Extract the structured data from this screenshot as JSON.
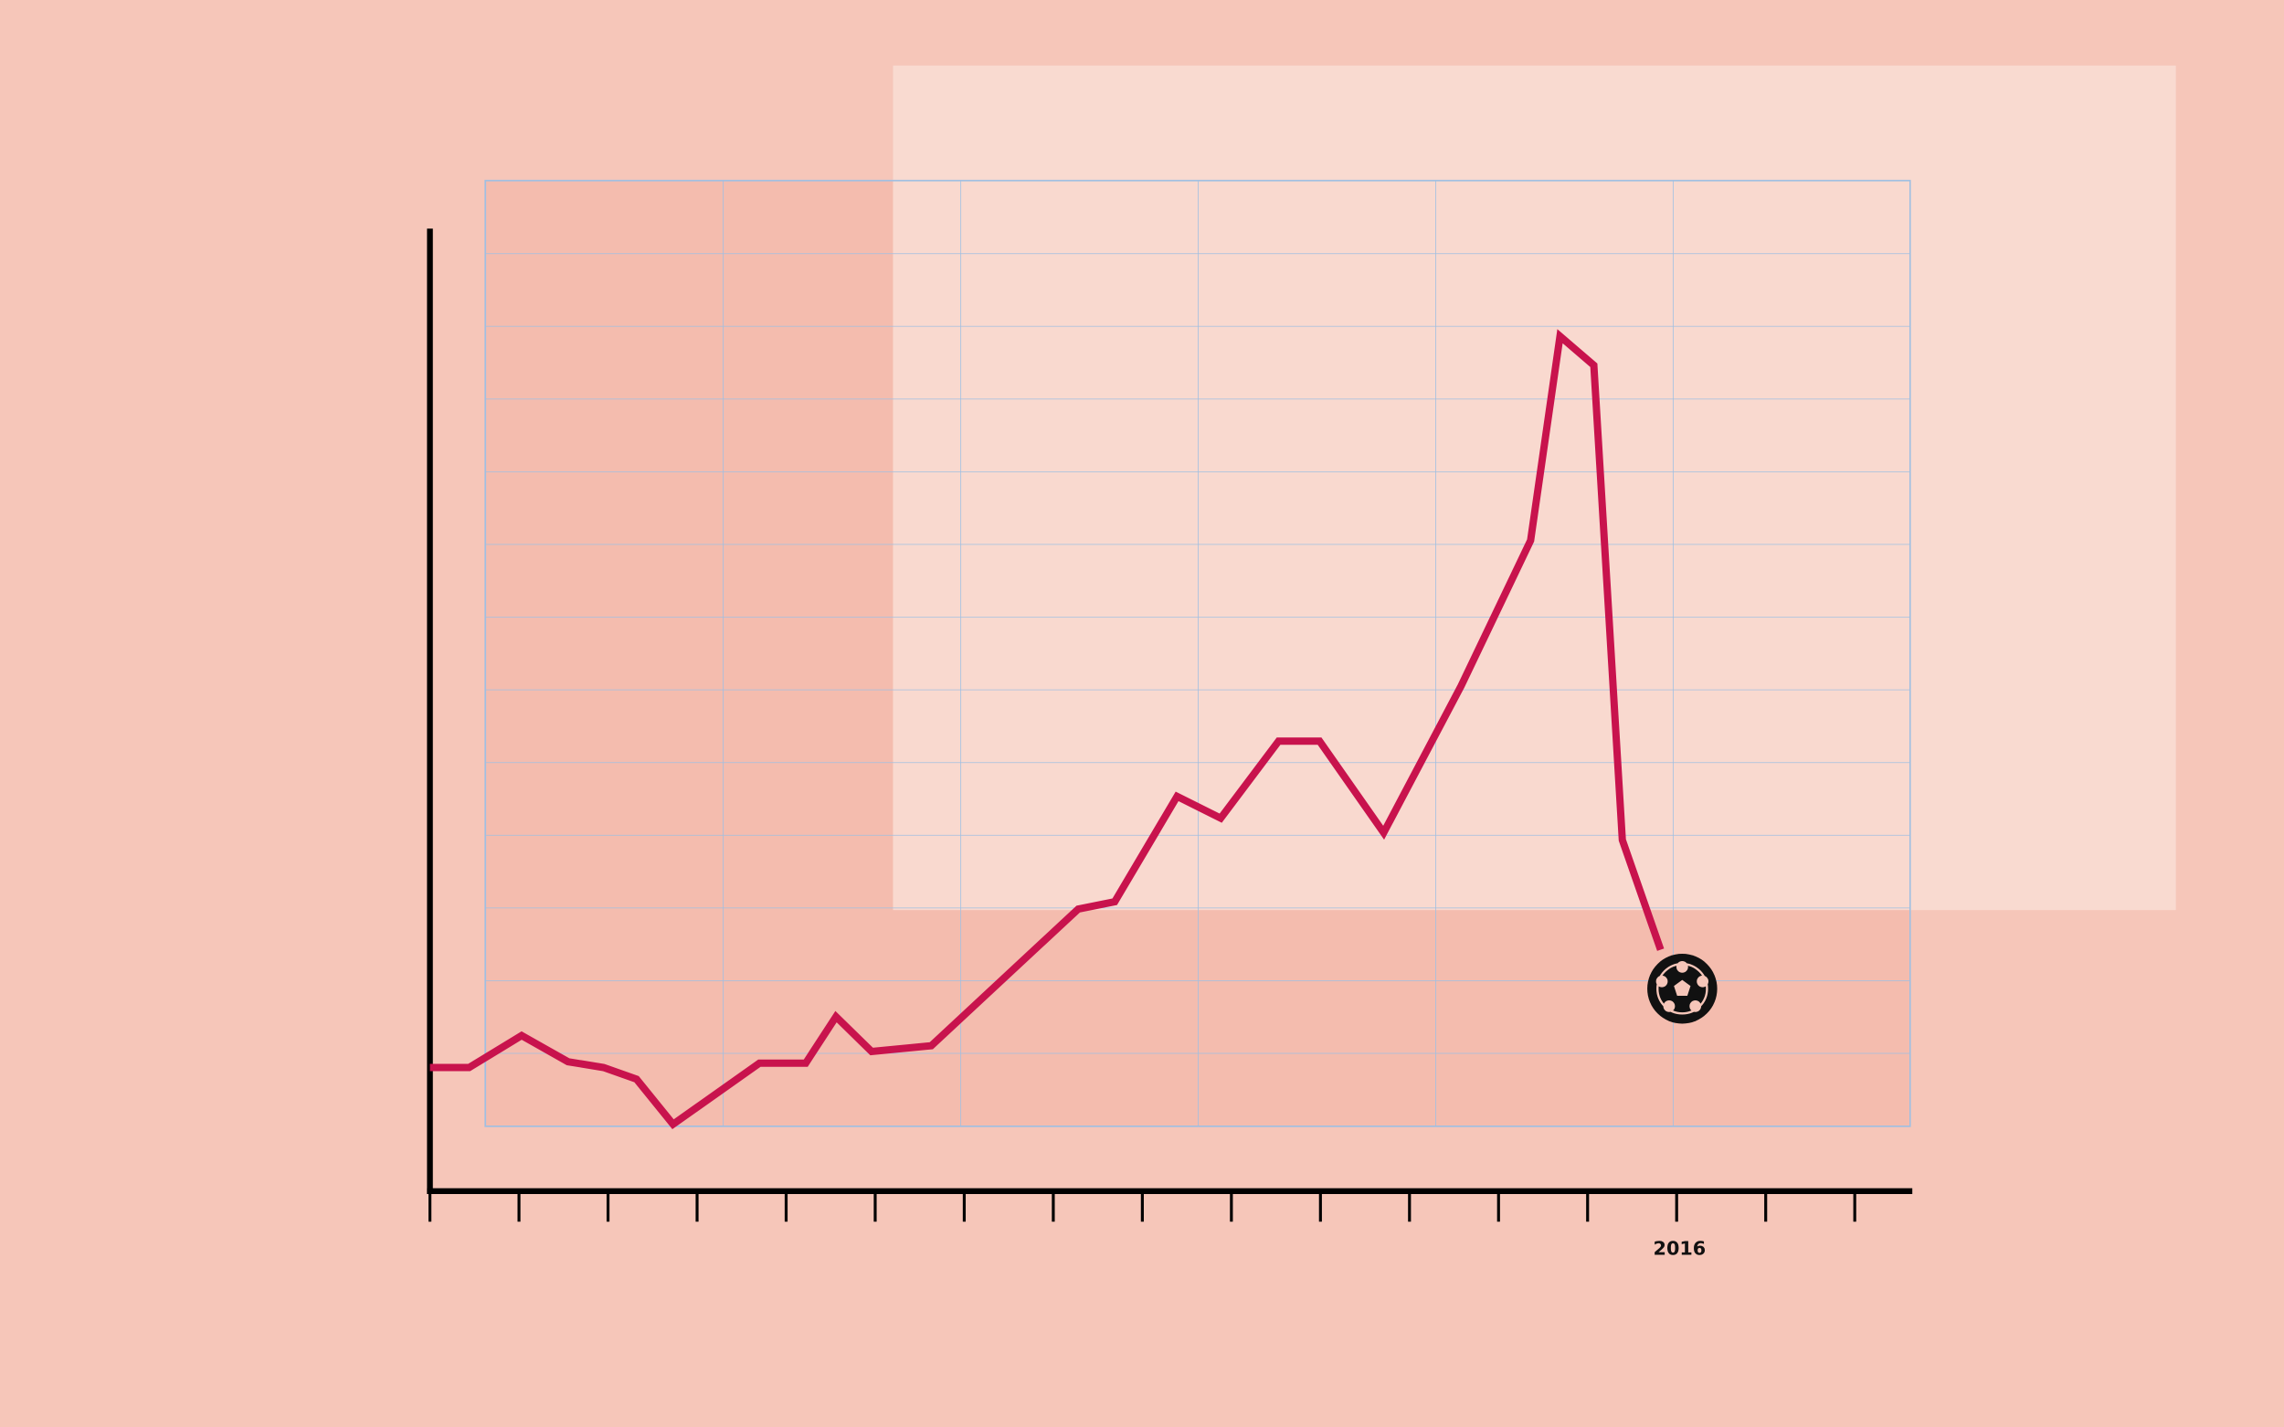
{
  "chart_data": {
    "type": "line",
    "x": [
      2002.0,
      2002.44,
      2003.03,
      2003.55,
      2003.95,
      2004.32,
      2004.73,
      2005.7,
      2006.22,
      2006.56,
      2006.96,
      2007.63,
      2009.28,
      2009.69,
      2010.39,
      2010.88,
      2011.53,
      2011.99,
      2012.71,
      2013.58,
      2014.36,
      2014.69,
      2015.07,
      2015.39,
      2015.82
    ],
    "series": [
      {
        "color": "#c8134d",
        "values": [
          0.8,
          0.8,
          1.24,
          0.88,
          0.8,
          0.64,
          0.02,
          0.86,
          0.86,
          1.5,
          1.02,
          1.1,
          2.98,
          3.08,
          4.53,
          4.23,
          5.29,
          5.29,
          4.03,
          6.05,
          8.05,
          10.86,
          10.46,
          3.93,
          2.42
        ]
      }
    ],
    "xlim": [
      2002,
      2018.63
    ],
    "ylim": [
      -0.9,
      12.34
    ],
    "xticks": [
      2016
    ],
    "xticks_minor": [
      2002,
      2003,
      2004,
      2005,
      2006,
      2007,
      2008,
      2009,
      2010,
      2011,
      2012,
      2013,
      2014,
      2015,
      2016,
      2017,
      2018
    ]
  }
}
